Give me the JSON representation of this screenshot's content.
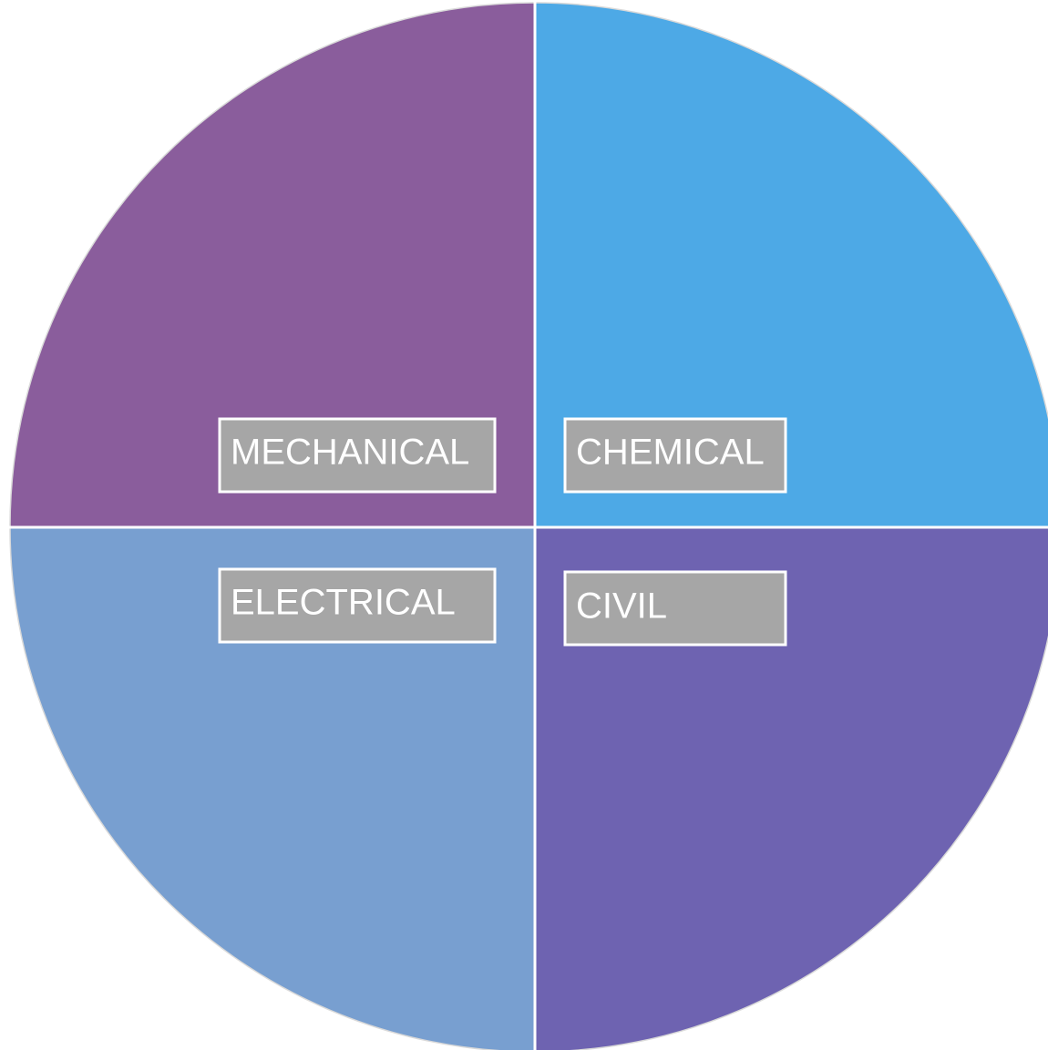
{
  "nodes": [
    {
      "label": "MECHANICAL"
    },
    {
      "label": "CHEMICAL"
    },
    {
      "label": "ELECTRICAL"
    },
    {
      "label": "CIVIL"
    }
  ]
}
